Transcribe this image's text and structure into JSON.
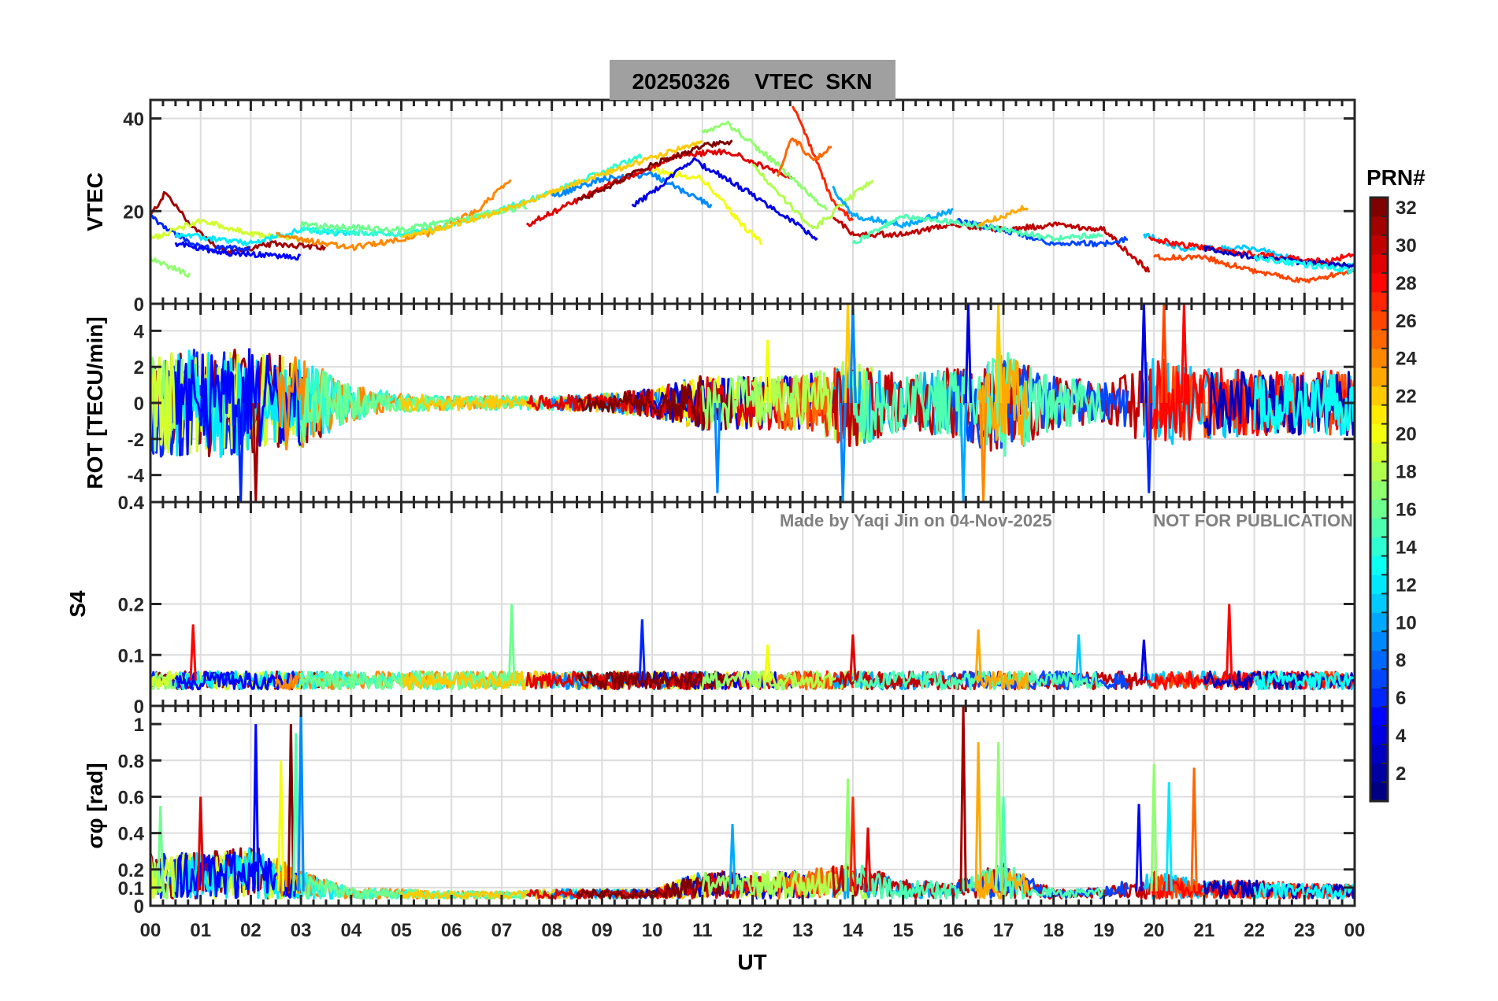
{
  "chart_data": {
    "type": "line",
    "title": "20250326    VTEC  SKN",
    "xlabel": "UT",
    "xlim": [
      0,
      24
    ],
    "x_tick_labels": [
      "00",
      "01",
      "02",
      "03",
      "04",
      "05",
      "06",
      "07",
      "08",
      "09",
      "10",
      "11",
      "12",
      "13",
      "14",
      "15",
      "16",
      "17",
      "18",
      "19",
      "20",
      "21",
      "22",
      "23",
      "00"
    ],
    "watermark": {
      "left": "Made by Yaqi Jin on 04-Nov-2025",
      "right": "NOT FOR PUBLICATION"
    },
    "colorbar": {
      "label": "PRN#",
      "range": [
        1,
        32
      ],
      "colormap": "jet",
      "tick_labels": [
        "2",
        "4",
        "6",
        "8",
        "10",
        "12",
        "14",
        "16",
        "18",
        "20",
        "22",
        "24",
        "26",
        "28",
        "30",
        "32"
      ]
    },
    "panels": [
      {
        "id": "vtec",
        "ylabel": "VTEC",
        "ylim": [
          0,
          44
        ],
        "yticks": [
          0,
          20,
          40
        ],
        "ytick_labels": [
          "0",
          "20",
          "40"
        ]
      },
      {
        "id": "rot",
        "ylabel": "ROT [TECU/min]",
        "ylim": [
          -5.5,
          5.5
        ],
        "yticks": [
          -4,
          -2,
          0,
          2,
          4
        ],
        "ytick_labels": [
          "-4",
          "-2",
          "0",
          "2",
          "4"
        ]
      },
      {
        "id": "s4",
        "ylabel": "S4",
        "ylim": [
          0,
          0.4
        ],
        "yticks": [
          0,
          0.1,
          0.2,
          0.4
        ],
        "ytick_labels": [
          "0",
          "0.1",
          "0.2",
          "0.4"
        ]
      },
      {
        "id": "sigma",
        "ylabel": "σφ [rad]",
        "ylim": [
          0,
          1.1
        ],
        "yticks": [
          0,
          0.1,
          0.2,
          0.4,
          0.6,
          0.8,
          1
        ],
        "ytick_labels": [
          "0",
          "0.1",
          "0.2",
          "0.4",
          "0.6",
          "0.8",
          "1"
        ]
      }
    ],
    "vtec_tracks": [
      {
        "prn": 31,
        "points": [
          [
            0,
            19
          ],
          [
            0.3,
            24
          ],
          [
            0.8,
            17
          ],
          [
            1.5,
            11
          ],
          [
            2.5,
            13
          ],
          [
            3.5,
            12
          ]
        ]
      },
      {
        "prn": 6,
        "points": [
          [
            0,
            19
          ],
          [
            0.5,
            15
          ],
          [
            1,
            12
          ],
          [
            2,
            12
          ]
        ]
      },
      {
        "prn": 17,
        "points": [
          [
            0,
            10
          ],
          [
            0.8,
            6
          ]
        ]
      },
      {
        "prn": 19,
        "points": [
          [
            0,
            14
          ],
          [
            1,
            18
          ],
          [
            2,
            15
          ],
          [
            3,
            14
          ]
        ]
      },
      {
        "prn": 12,
        "points": [
          [
            0.5,
            15
          ],
          [
            2,
            13
          ],
          [
            3,
            16
          ],
          [
            4,
            15
          ]
        ]
      },
      {
        "prn": 5,
        "points": [
          [
            0.5,
            13
          ],
          [
            1.5,
            11
          ],
          [
            3,
            10
          ]
        ]
      },
      {
        "prn": 24,
        "points": [
          [
            2.5,
            15
          ],
          [
            4,
            12
          ],
          [
            5.5,
            15
          ],
          [
            6.5,
            20
          ],
          [
            7.2,
            27
          ]
        ]
      },
      {
        "prn": 14,
        "points": [
          [
            3,
            16
          ],
          [
            5,
            15
          ],
          [
            6,
            17
          ],
          [
            8,
            24
          ],
          [
            9.8,
            32
          ]
        ]
      },
      {
        "prn": 16,
        "points": [
          [
            3,
            17
          ],
          [
            5,
            16
          ],
          [
            6.5,
            19
          ],
          [
            7.5,
            21
          ]
        ]
      },
      {
        "prn": 22,
        "points": [
          [
            5,
            14
          ],
          [
            7,
            20
          ],
          [
            9,
            28
          ],
          [
            11,
            35
          ]
        ]
      },
      {
        "prn": 9,
        "points": [
          [
            8,
            23
          ],
          [
            9,
            27
          ],
          [
            10,
            28
          ],
          [
            10.5,
            25
          ],
          [
            11.2,
            21
          ]
        ]
      },
      {
        "prn": 20,
        "points": [
          [
            10,
            29
          ],
          [
            11,
            27
          ],
          [
            11.8,
            17
          ],
          [
            12.2,
            13
          ]
        ]
      },
      {
        "prn": 4,
        "points": [
          [
            9.6,
            21
          ],
          [
            10,
            24
          ],
          [
            10.8,
            31
          ],
          [
            11.5,
            27
          ],
          [
            12.5,
            20
          ],
          [
            13.3,
            14
          ]
        ]
      },
      {
        "prn": 29,
        "points": [
          [
            7.5,
            17
          ],
          [
            9,
            25
          ],
          [
            10.5,
            32
          ],
          [
            11.5,
            33
          ],
          [
            12.8,
            27
          ]
        ]
      },
      {
        "prn": 32,
        "points": [
          [
            8.5,
            22
          ],
          [
            10,
            30
          ],
          [
            11,
            34
          ],
          [
            11.6,
            35
          ]
        ]
      },
      {
        "prn": 17,
        "points": [
          [
            11,
            37
          ],
          [
            11.5,
            39
          ],
          [
            12.5,
            30
          ],
          [
            13.5,
            20
          ]
        ]
      },
      {
        "prn": 27,
        "points": [
          [
            12.8,
            43
          ],
          [
            13.3,
            30
          ],
          [
            13.6,
            22
          ],
          [
            14,
            18
          ]
        ]
      },
      {
        "prn": 25,
        "points": [
          [
            12.5,
            28
          ],
          [
            12.8,
            36
          ],
          [
            13.2,
            31
          ],
          [
            13.6,
            34
          ]
        ]
      },
      {
        "prn": 18,
        "points": [
          [
            12,
            30
          ],
          [
            13.2,
            16
          ],
          [
            14.4,
            27
          ]
        ]
      },
      {
        "prn": 10,
        "points": [
          [
            13.6,
            25
          ],
          [
            14,
            19
          ],
          [
            15,
            17
          ],
          [
            16,
            20
          ]
        ]
      },
      {
        "prn": 30,
        "points": [
          [
            13.6,
            19
          ],
          [
            14,
            15
          ],
          [
            15,
            15
          ],
          [
            16,
            17
          ],
          [
            17,
            16
          ],
          [
            18,
            17
          ],
          [
            19,
            16
          ],
          [
            19.9,
            7
          ]
        ]
      },
      {
        "prn": 7,
        "points": [
          [
            16,
            18
          ],
          [
            17,
            16
          ],
          [
            18,
            13
          ],
          [
            19,
            13
          ],
          [
            19.5,
            14
          ]
        ]
      },
      {
        "prn": 15,
        "points": [
          [
            14,
            13
          ],
          [
            15,
            19
          ],
          [
            16.5,
            17
          ],
          [
            18,
            14
          ],
          [
            19,
            15
          ]
        ]
      },
      {
        "prn": 23,
        "points": [
          [
            16.5,
            17
          ],
          [
            17.5,
            21
          ]
        ]
      },
      {
        "prn": 11,
        "points": [
          [
            19.8,
            15
          ],
          [
            20.5,
            12
          ],
          [
            22,
            12
          ],
          [
            23,
            9
          ],
          [
            24,
            8
          ]
        ]
      },
      {
        "prn": 26,
        "points": [
          [
            20,
            10
          ],
          [
            21,
            10
          ],
          [
            22,
            7
          ],
          [
            23,
            5
          ],
          [
            24,
            7
          ]
        ]
      },
      {
        "prn": 28,
        "points": [
          [
            19.9,
            14
          ],
          [
            21,
            12
          ],
          [
            22.5,
            10
          ],
          [
            23.5,
            9
          ],
          [
            24,
            11
          ]
        ]
      },
      {
        "prn": 3,
        "points": [
          [
            21,
            12
          ],
          [
            22,
            10
          ],
          [
            23,
            9
          ],
          [
            24,
            8
          ]
        ]
      },
      {
        "prn": 13,
        "points": [
          [
            22,
            10
          ],
          [
            24,
            7
          ]
        ]
      }
    ],
    "rot_envelope_hourly": [
      3,
      3,
      3,
      2.5,
      1,
      0.5,
      0.4,
      0.4,
      0.4,
      0.5,
      0.8,
      1.5,
      1.5,
      1.5,
      2.5,
      1.5,
      2,
      3,
      1.5,
      1.2,
      2.5,
      2,
      1.8,
      1.8,
      1.8
    ],
    "rot_spikes": [
      [
        1.8,
        -5.5,
        6
      ],
      [
        2.1,
        -5.5,
        31
      ],
      [
        11.3,
        -5,
        9
      ],
      [
        12.3,
        3.5,
        20
      ],
      [
        13.8,
        -5.5,
        9
      ],
      [
        13.9,
        5.5,
        22
      ],
      [
        14.0,
        5.5,
        9
      ],
      [
        16.2,
        -5.5,
        10
      ],
      [
        16.3,
        5.5,
        4
      ],
      [
        16.6,
        -5.5,
        24
      ],
      [
        16.9,
        5.5,
        22
      ],
      [
        19.8,
        5.5,
        4
      ],
      [
        19.9,
        -5,
        6
      ],
      [
        20.2,
        5.5,
        26
      ],
      [
        20.6,
        5.5,
        28
      ]
    ],
    "s4_baseline": 0.05,
    "s4_spikes": [
      [
        0.85,
        0.16,
        28
      ],
      [
        7.2,
        0.2,
        16
      ],
      [
        9.8,
        0.17,
        6
      ],
      [
        12.3,
        0.12,
        20
      ],
      [
        14.0,
        0.14,
        29
      ],
      [
        16.5,
        0.15,
        23
      ],
      [
        18.5,
        0.14,
        11
      ],
      [
        19.8,
        0.13,
        4
      ],
      [
        21.5,
        0.2,
        28
      ]
    ],
    "sigma_envelope_hourly": [
      0.25,
      0.25,
      0.3,
      0.15,
      0.06,
      0.05,
      0.04,
      0.04,
      0.05,
      0.05,
      0.05,
      0.15,
      0.15,
      0.15,
      0.2,
      0.1,
      0.1,
      0.2,
      0.05,
      0.06,
      0.15,
      0.1,
      0.1,
      0.08,
      0.08
    ],
    "sigma_spikes": [
      [
        0.2,
        0.55,
        16
      ],
      [
        1.0,
        0.6,
        29
      ],
      [
        2.1,
        1.0,
        5
      ],
      [
        2.6,
        0.8,
        20
      ],
      [
        2.8,
        1.0,
        32
      ],
      [
        2.9,
        0.95,
        15
      ],
      [
        3.0,
        1.1,
        9
      ],
      [
        11.6,
        0.45,
        10
      ],
      [
        13.9,
        0.7,
        17
      ],
      [
        14.0,
        0.6,
        27
      ],
      [
        14.3,
        0.43,
        29
      ],
      [
        16.2,
        1.1,
        31
      ],
      [
        16.5,
        0.9,
        23
      ],
      [
        16.9,
        0.9,
        17
      ],
      [
        17.0,
        0.6,
        15
      ],
      [
        19.7,
        0.56,
        5
      ],
      [
        20.0,
        0.78,
        17
      ],
      [
        20.3,
        0.68,
        12
      ],
      [
        20.8,
        0.76,
        25
      ]
    ]
  }
}
